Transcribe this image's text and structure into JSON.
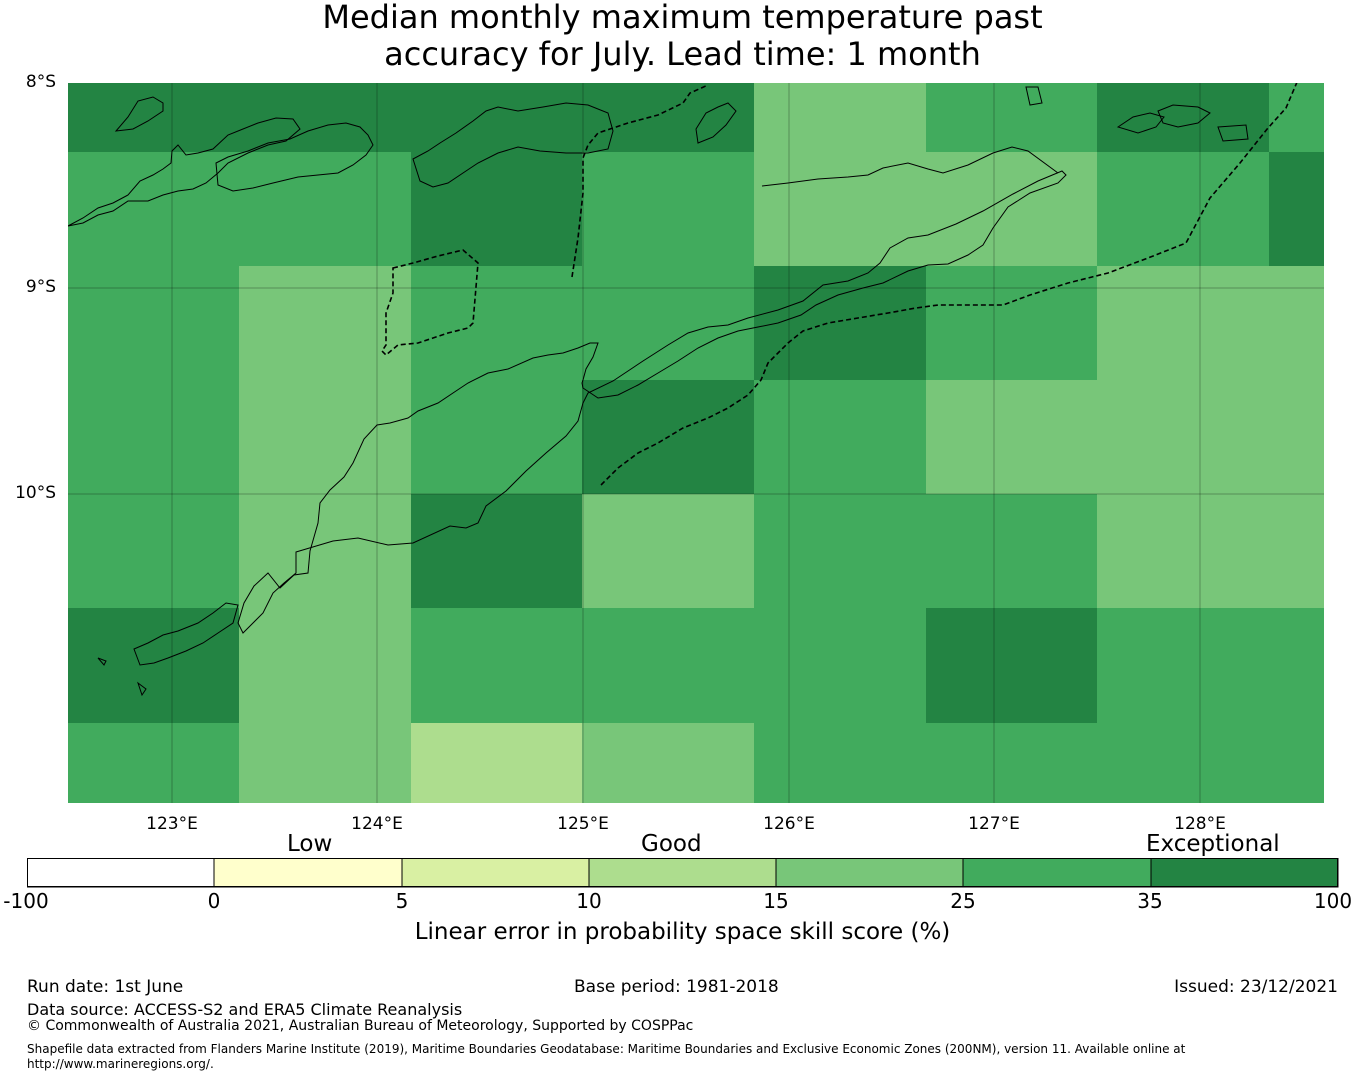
{
  "title": {
    "line1": "Median monthly maximum temperature past",
    "line2": "accuracy for July. Lead time: 1 month"
  },
  "axes": {
    "lat_labels": [
      "8°S",
      "9°S",
      "10°S"
    ],
    "lon_labels": [
      "123°E",
      "124°E",
      "125°E",
      "126°E",
      "127°E",
      "128°E"
    ]
  },
  "legend": {
    "categories": [
      "Low",
      "Good",
      "Exceptional"
    ],
    "tick_labels": [
      "-100",
      "0",
      "5",
      "10",
      "15",
      "25",
      "35",
      "100"
    ],
    "colors": [
      "#ffffff",
      "#ffffcc",
      "#d9f0a3",
      "#addd8e",
      "#78c679",
      "#41ab5d",
      "#238443"
    ],
    "label": "Linear error in probability space skill score (%)"
  },
  "footer": {
    "run_date": "Run date: 1st June",
    "base_period": "Base period: 1981-2018",
    "issued": "Issued: 23/12/2021",
    "data_source": "Data source: ACCESS-S2 and ERA5 Climate Reanalysis",
    "copyright": "© Commonwealth of Australia 2021, Australian Bureau of Meteorology, Supported by COSPPac",
    "shapefile_line1": "Shapefile data extracted from Flanders Marine Institute (2019), Maritime Boundaries Geodatabase: Maritime Boundaries and Exclusive Economic Zones (200NM), version 11. Available online at",
    "shapefile_line2": "http://www.marineregions.org/."
  },
  "map_data": {
    "skill_category_grid": [
      [
        6,
        6,
        6,
        6,
        4,
        5,
        6,
        5
      ],
      [
        5,
        5,
        6,
        5,
        4,
        4,
        5,
        6
      ],
      [
        5,
        4,
        5,
        5,
        6,
        5,
        4,
        4
      ],
      [
        5,
        4,
        5,
        6,
        5,
        4,
        4,
        4
      ],
      [
        5,
        4,
        6,
        4,
        5,
        5,
        4,
        4
      ],
      [
        6,
        4,
        5,
        5,
        5,
        6,
        5,
        5
      ],
      [
        5,
        4,
        3,
        4,
        5,
        5,
        5,
        5
      ]
    ]
  }
}
